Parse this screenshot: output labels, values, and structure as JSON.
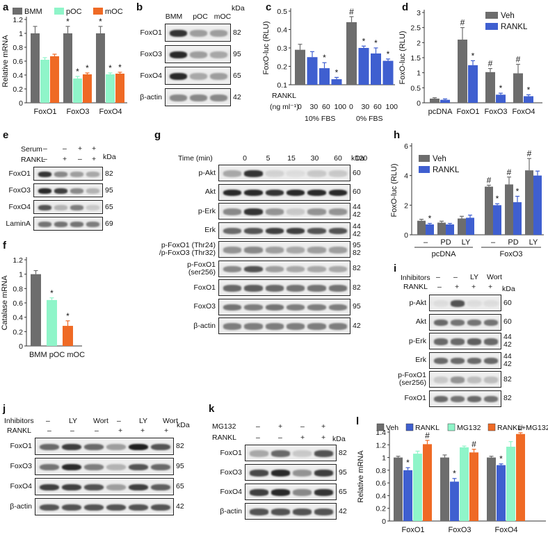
{
  "colors": {
    "bmm": "#6d6d6d",
    "poc": "#8ff5c9",
    "moc": "#ef6a25",
    "veh": "#6d6d6d",
    "rankl": "#3f5fd0",
    "mg132": "#8ff5c9",
    "combo": "#ef6a25"
  },
  "panel_labels": {
    "a": "a",
    "b": "b",
    "c": "c",
    "d": "d",
    "e": "e",
    "f": "f",
    "g": "g",
    "h": "h",
    "i": "i",
    "j": "j",
    "k": "k",
    "l": "l"
  },
  "panel_b": {
    "cols": [
      "BMM",
      "pOC",
      "mOC"
    ],
    "kda": "kDa",
    "rows": [
      {
        "label": "FoxO1",
        "kda": "82"
      },
      {
        "label": "FoxO3",
        "kda": "95"
      },
      {
        "label": "FoxO4",
        "kda": "65"
      },
      {
        "label": "β-actin",
        "kda": "42"
      }
    ]
  },
  "panel_c_text": {
    "rankl": "RANKL",
    "unit": "(ng ml⁻¹)",
    "doses": [
      "0",
      "30",
      "60",
      "100",
      "0",
      "30",
      "60",
      "100"
    ],
    "g1": "10% FBS",
    "g2": "0% FBS"
  },
  "panel_e": {
    "serum": "Serum",
    "rankl": "RANKL",
    "serum_signs": [
      "–",
      "–",
      "+",
      "+"
    ],
    "rankl_signs": [
      "–",
      "+",
      "–",
      "+"
    ],
    "kda": "kDa",
    "rows": [
      {
        "label": "FoxO1",
        "kda": "82"
      },
      {
        "label": "FoxO3",
        "kda": "95"
      },
      {
        "label": "FoxO4",
        "kda": "65"
      },
      {
        "label": "LaminA",
        "kda": "69"
      }
    ]
  },
  "panel_g": {
    "time_label": "Time (min)",
    "times": [
      "0",
      "5",
      "15",
      "30",
      "60",
      "120"
    ],
    "kda": "kDa",
    "rows": [
      {
        "label": "p-Akt",
        "kda": "60"
      },
      {
        "label": "Akt",
        "kda": "60"
      },
      {
        "label": "p-Erk",
        "kda": "44\n42"
      },
      {
        "label": "Erk",
        "kda": "44\n42"
      },
      {
        "label": "p-FoxO1 (Thr24)\n/p-FoxO3 (Thr32)",
        "kda": "95\n82"
      },
      {
        "label": "p-FoxO1\n(ser256)",
        "kda": "82"
      },
      {
        "label": "FoxO1",
        "kda": "82"
      },
      {
        "label": "FoxO3",
        "kda": "95"
      },
      {
        "label": "β-actin",
        "kda": "42"
      }
    ]
  },
  "panel_h_text": {
    "groups": [
      "pcDNA",
      "FoxO3"
    ],
    "treat": [
      "–",
      "PD",
      "LY",
      "–",
      "PD",
      "LY"
    ]
  },
  "panel_i": {
    "inhibitors": "Inhibitors",
    "rankl": "RANKL",
    "inh_signs": [
      "–",
      "–",
      "LY",
      "Wort"
    ],
    "rankl_signs": [
      "–",
      "+",
      "+",
      "+"
    ],
    "kda": "kDa",
    "rows": [
      {
        "label": "p-Akt",
        "kda": "60"
      },
      {
        "label": "Akt",
        "kda": "60"
      },
      {
        "label": "p-Erk",
        "kda": "44\n42"
      },
      {
        "label": "Erk",
        "kda": "44\n42"
      },
      {
        "label": "p-FoxO1\n(ser256)",
        "kda": "82"
      },
      {
        "label": "FoxO1",
        "kda": "82"
      }
    ]
  },
  "panel_j": {
    "inhibitors": "Inhibitors",
    "rankl": "RANKL",
    "inh_signs": [
      "–",
      "LY",
      "Wort",
      "–",
      "LY",
      "Wort"
    ],
    "rankl_signs": [
      "–",
      "–",
      "–",
      "+",
      "+",
      "+"
    ],
    "kda": "kDa",
    "rows": [
      {
        "label": "FoxO1",
        "kda": "82"
      },
      {
        "label": "FoxO3",
        "kda": "95"
      },
      {
        "label": "FoxO4",
        "kda": "65"
      },
      {
        "label": "β-actin",
        "kda": "42"
      }
    ]
  },
  "panel_k": {
    "mg132": "MG132",
    "rankl": "RANKL",
    "mg_signs": [
      "–",
      "+",
      "–",
      "+"
    ],
    "rankl_signs": [
      "–",
      "–",
      "+",
      "+"
    ],
    "kda": "kDa",
    "rows": [
      {
        "label": "FoxO1",
        "kda": "82"
      },
      {
        "label": "FoxO3",
        "kda": "95"
      },
      {
        "label": "FoxO4",
        "kda": "65"
      },
      {
        "label": "β-actin",
        "kda": "42"
      }
    ]
  },
  "chart_data": [
    {
      "panel": "a",
      "type": "bar",
      "categories": [
        "FoxO1",
        "FoxO3",
        "FoxO4"
      ],
      "ylabel": "Relative mRNA",
      "ylim": [
        0,
        1.2
      ],
      "yticks": [
        0,
        0.2,
        0.4,
        0.6,
        0.8,
        1,
        1.2
      ],
      "series": [
        {
          "name": "BMM",
          "values": [
            1.0,
            1.0,
            1.0
          ],
          "err": [
            0.1,
            0.1,
            0.1
          ]
        },
        {
          "name": "pOC",
          "values": [
            0.62,
            0.35,
            0.41
          ],
          "err": [
            0.03,
            0.03,
            0.02
          ]
        },
        {
          "name": "mOC",
          "values": [
            0.67,
            0.41,
            0.42
          ],
          "err": [
            0.03,
            0.02,
            0.02
          ]
        }
      ],
      "marks": [
        [
          null,
          "*",
          "*"
        ],
        [
          null,
          "*",
          "*"
        ],
        [
          null,
          "*",
          "*"
        ]
      ]
    },
    {
      "panel": "c",
      "type": "bar",
      "ylabel": "FoxO-luc (RLU)",
      "ylim": [
        0.1,
        0.5
      ],
      "yticks": [
        0.1,
        0.2,
        0.3,
        0.4,
        0.5
      ],
      "values": [
        0.29,
        0.25,
        0.19,
        0.13,
        0.44,
        0.3,
        0.27,
        0.23
      ],
      "err": [
        0.03,
        0.03,
        0.03,
        0.01,
        0.03,
        0.01,
        0.03,
        0.01
      ],
      "marks": [
        null,
        null,
        "*",
        "*",
        "#",
        "*",
        "*",
        "*"
      ]
    },
    {
      "panel": "d",
      "type": "bar",
      "categories": [
        "pcDNA",
        "FoxO1",
        "FoxO3",
        "FoxO4"
      ],
      "ylabel": "FoxO-luc (RLU)",
      "ylim": [
        0,
        3
      ],
      "yticks": [
        0,
        0.5,
        1,
        1.5,
        2,
        2.5,
        3
      ],
      "series": [
        {
          "name": "Veh",
          "values": [
            0.14,
            2.1,
            1.02,
            0.98
          ],
          "err": [
            0.03,
            0.4,
            0.12,
            0.3
          ]
        },
        {
          "name": "RANKL",
          "values": [
            0.1,
            1.25,
            0.27,
            0.22
          ],
          "err": [
            0.03,
            0.15,
            0.05,
            0.05
          ]
        }
      ],
      "marks": [
        [
          null,
          "#",
          "#",
          "#"
        ],
        [
          null,
          "*",
          "*",
          "*"
        ]
      ]
    },
    {
      "panel": "f",
      "type": "bar",
      "categories": [
        "BMM",
        "pOC",
        "mOC"
      ],
      "ylabel": "Catalase mRNA",
      "ylim": [
        0,
        1.2
      ],
      "yticks": [
        0,
        0.2,
        0.4,
        0.6,
        0.8,
        1,
        1.2
      ],
      "values": [
        1.0,
        0.64,
        0.28
      ],
      "err": [
        0.05,
        0.03,
        0.07
      ],
      "marks": [
        null,
        "*",
        "*"
      ]
    },
    {
      "panel": "h",
      "type": "bar",
      "categories": [
        "–",
        "PD",
        "LY",
        "–",
        "PD",
        "LY"
      ],
      "ylabel": "FoxO-luc (RLU)",
      "ylim": [
        0,
        6
      ],
      "yticks": [
        0,
        2,
        4,
        6
      ],
      "series": [
        {
          "name": "Veh",
          "values": [
            0.95,
            0.82,
            1.1,
            3.25,
            3.4,
            4.35
          ],
          "err": [
            0.1,
            0.1,
            0.15,
            0.1,
            0.5,
            0.8
          ]
        },
        {
          "name": "RANKL",
          "values": [
            0.7,
            0.7,
            1.15,
            2.0,
            2.2,
            4.0
          ],
          "err": [
            0.07,
            0.07,
            0.18,
            0.1,
            0.4,
            0.3
          ]
        }
      ],
      "marks": [
        [
          null,
          null,
          null,
          "#",
          "#",
          "#"
        ],
        [
          "*",
          null,
          null,
          "*",
          "*",
          null
        ]
      ]
    },
    {
      "panel": "l",
      "type": "bar",
      "categories": [
        "FoxO1",
        "FoxO3",
        "FoxO4"
      ],
      "ylabel": "Relative mRNA",
      "ylim": [
        0,
        1.4
      ],
      "yticks": [
        0,
        0.2,
        0.4,
        0.6,
        0.8,
        1,
        1.2,
        1.4
      ],
      "series": [
        {
          "name": "Veh",
          "values": [
            1.0,
            1.0,
            1.0
          ],
          "err": [
            0.02,
            0.04,
            0.02
          ]
        },
        {
          "name": "RANKL",
          "values": [
            0.8,
            0.62,
            0.88
          ],
          "err": [
            0.04,
            0.05,
            0.02
          ]
        },
        {
          "name": "MG132",
          "values": [
            1.06,
            1.16,
            1.17
          ],
          "err": [
            0.04,
            0.02,
            0.08
          ]
        },
        {
          "name": "RANKL+MG132",
          "values": [
            1.21,
            1.08,
            1.37
          ],
          "err": [
            0.06,
            0.05,
            0.02
          ]
        }
      ],
      "marks": [
        [
          null,
          null,
          null
        ],
        [
          "*",
          "*",
          "*"
        ],
        [
          null,
          null,
          null
        ],
        [
          "#",
          "#",
          "#"
        ]
      ]
    }
  ]
}
